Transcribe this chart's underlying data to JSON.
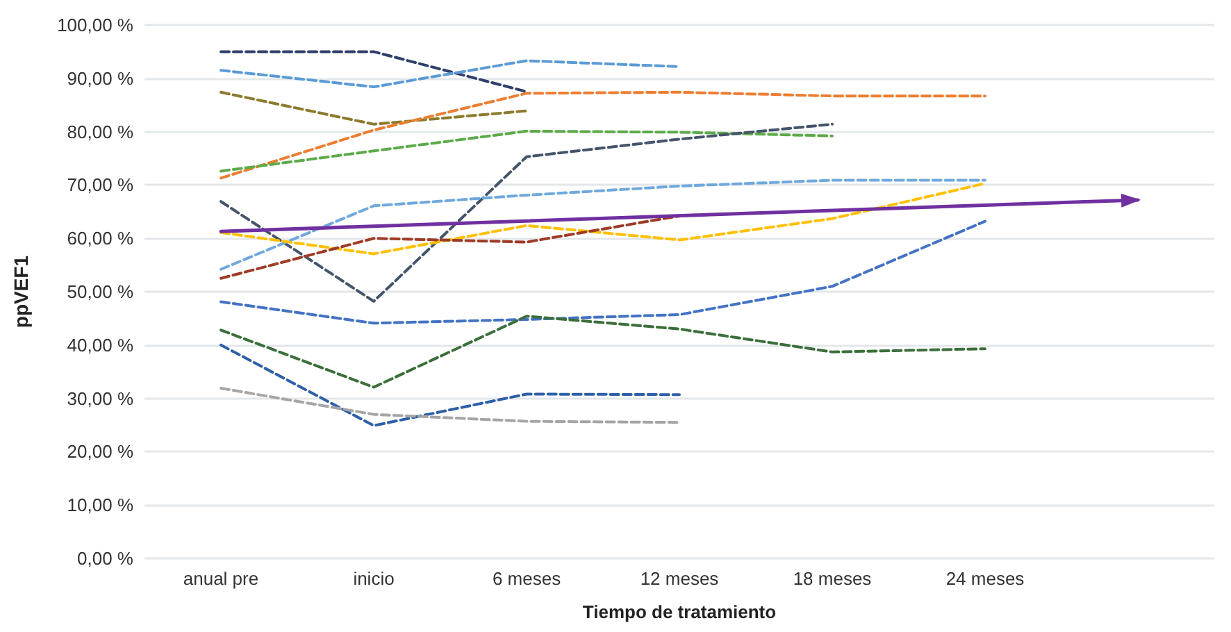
{
  "chart_data": {
    "type": "line",
    "xlabel": "Tiempo de tratamiento",
    "ylabel": "ppVEF1",
    "categories": [
      "anual pre",
      "inicio",
      "6 meses",
      "12 meses",
      "18 meses",
      "24 meses",
      null
    ],
    "ylim": [
      0,
      100
    ],
    "yticks": [
      {
        "value": 0,
        "label": "0,00 %"
      },
      {
        "value": 10,
        "label": "10,00 %"
      },
      {
        "value": 20,
        "label": "20,00 %"
      },
      {
        "value": 30,
        "label": "30,00 %"
      },
      {
        "value": 40,
        "label": "40,00 %"
      },
      {
        "value": 50,
        "label": "50,00 %"
      },
      {
        "value": 60,
        "label": "60,00 %"
      },
      {
        "value": 70,
        "label": "70,00 %"
      },
      {
        "value": 80,
        "label": "80,00 %"
      },
      {
        "value": 90,
        "label": "90,00 %"
      },
      {
        "value": 100,
        "label": "100,00 %"
      }
    ],
    "grid": "y",
    "marker": "none",
    "line_style": "dashed",
    "series": [
      {
        "color": "#2f3f6b",
        "values": [
          95,
          95,
          87.5,
          null,
          null,
          null,
          null
        ]
      },
      {
        "color": "#5b9bd5",
        "values": [
          91.5,
          88.4,
          93.3,
          92.2,
          null,
          null,
          null
        ]
      },
      {
        "color": "#8c7a2e",
        "values": [
          87.4,
          81.4,
          83.9,
          null,
          null,
          null,
          null
        ]
      },
      {
        "color": "#ed7d31",
        "values": [
          71.3,
          80.3,
          87.2,
          87.4,
          86.7,
          86.7,
          null
        ]
      },
      {
        "color": "#5cab48",
        "values": [
          72.6,
          76.4,
          80.1,
          79.9,
          79.2,
          null,
          null
        ]
      },
      {
        "color": "#44546a",
        "values": [
          66.9,
          48.2,
          75.3,
          78.6,
          81.4,
          null,
          null
        ]
      },
      {
        "color": "#6fa8dc",
        "values": [
          54.2,
          66.1,
          68.1,
          69.8,
          70.9,
          70.9,
          null
        ]
      },
      {
        "color": "#ffc000",
        "values": [
          61.1,
          57.1,
          62.4,
          59.7,
          63.7,
          70.3,
          null
        ]
      },
      {
        "color": "#9e3b26",
        "values": [
          52.5,
          60,
          59.3,
          64.2,
          null,
          null,
          null
        ]
      },
      {
        "color": "#4472c4",
        "values": [
          48.1,
          44.1,
          44.8,
          45.7,
          51,
          63.2,
          null
        ]
      },
      {
        "color": "#3b6e3b",
        "values": [
          42.8,
          32.1,
          45.4,
          43,
          38.7,
          39.3,
          null
        ]
      },
      {
        "color": "#2e5fa8",
        "values": [
          40,
          24.9,
          30.8,
          30.7,
          null,
          null,
          null
        ]
      },
      {
        "color": "#a5a5a5",
        "values": [
          31.9,
          27,
          25.7,
          25.5,
          null,
          null,
          null
        ]
      },
      {
        "color": "#7030a0",
        "line_style": "solid",
        "marker": "triangle",
        "values": [
          61.3,
          null,
          null,
          null,
          null,
          null,
          67.2
        ]
      }
    ]
  }
}
